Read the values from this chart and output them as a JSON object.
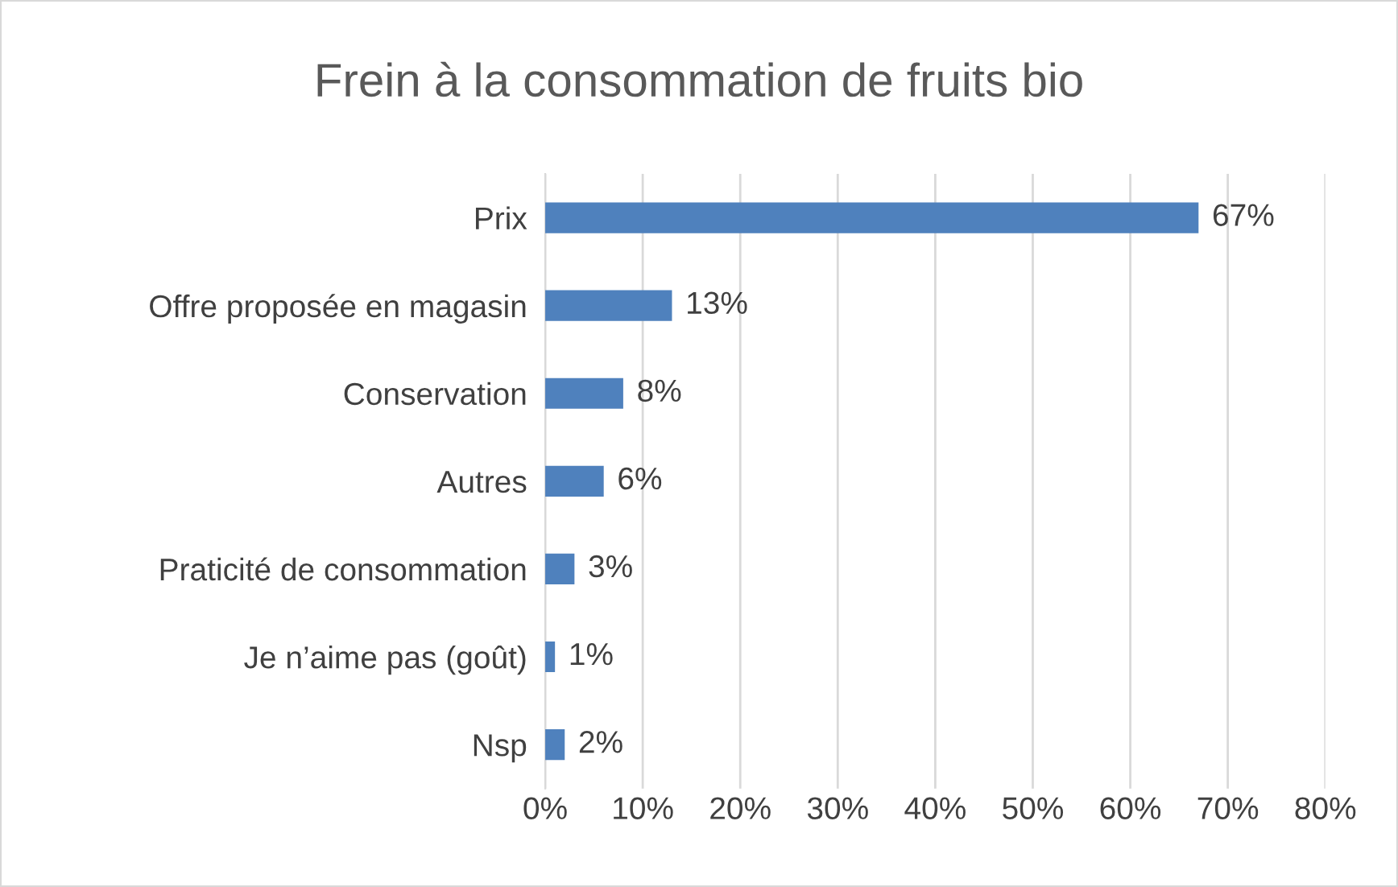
{
  "chart_data": {
    "type": "bar",
    "orientation": "horizontal",
    "title": "Frein à la consommation de fruits bio",
    "categories": [
      "Prix",
      "Offre proposée en magasin",
      "Conservation",
      "Autres",
      "Praticité de consommation",
      "Je n’aime pas (goût)",
      "Nsp"
    ],
    "values": [
      67,
      13,
      8,
      6,
      3,
      1,
      2
    ],
    "value_labels": [
      "67%",
      "13%",
      "8%",
      "6%",
      "3%",
      "1%",
      "2%"
    ],
    "color": "#4f81bd",
    "xlim": [
      0,
      80
    ],
    "xticks": [
      {
        "value": 0,
        "label": "0%"
      },
      {
        "value": 10,
        "label": "10%"
      },
      {
        "value": 20,
        "label": "20%"
      },
      {
        "value": 30,
        "label": "30%"
      },
      {
        "value": 40,
        "label": "40%"
      },
      {
        "value": 50,
        "label": "50%"
      },
      {
        "value": 60,
        "label": "60%"
      },
      {
        "value": 70,
        "label": "70%"
      },
      {
        "value": 80,
        "label": "80%"
      }
    ],
    "grid": "x",
    "legend": false
  }
}
